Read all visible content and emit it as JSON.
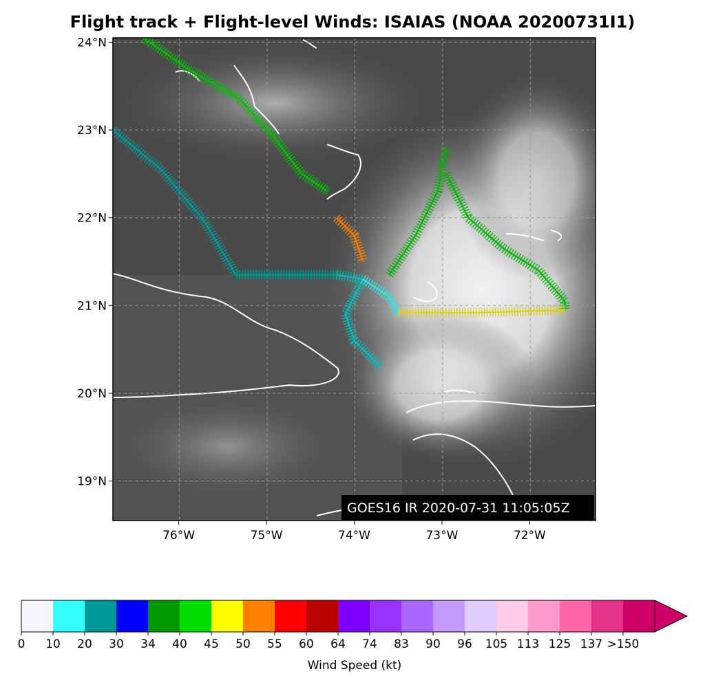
{
  "title": "Flight track + Flight-level Winds: ISAIAS (NOAA 20200731I1)",
  "map": {
    "lon_range": [
      -76.75,
      -71.25
    ],
    "lat_range": [
      18.55,
      24.05
    ],
    "grid": true,
    "lon_ticks": [
      {
        "value": -76,
        "label": "76°W"
      },
      {
        "value": -75,
        "label": "75°W"
      },
      {
        "value": -74,
        "label": "74°W"
      },
      {
        "value": -73,
        "label": "73°W"
      },
      {
        "value": -72,
        "label": "72°W"
      }
    ],
    "lat_ticks": [
      {
        "value": 24,
        "label": "24°N"
      },
      {
        "value": 23,
        "label": "23°N"
      },
      {
        "value": 22,
        "label": "22°N"
      },
      {
        "value": 21,
        "label": "21°N"
      },
      {
        "value": 20,
        "label": "20°N"
      },
      {
        "value": 19,
        "label": "19°N"
      }
    ],
    "stamp": "GOES16 IR 2020-07-31 11:05:05Z",
    "tracks": [
      {
        "color": "#00c000",
        "points": [
          [
            -76.4,
            24.05
          ],
          [
            -75.9,
            23.7
          ],
          [
            -75.3,
            23.35
          ],
          [
            -74.9,
            22.9
          ],
          [
            -74.6,
            22.5
          ],
          [
            -74.3,
            22.3
          ]
        ]
      },
      {
        "color": "#009999",
        "points": [
          [
            -76.75,
            23.0
          ],
          [
            -76.2,
            22.55
          ],
          [
            -75.7,
            21.95
          ],
          [
            -75.35,
            21.35
          ],
          [
            -74.2,
            21.35
          ]
        ]
      },
      {
        "color": "#ff8000",
        "points": [
          [
            -74.2,
            22.0
          ],
          [
            -74.0,
            21.8
          ],
          [
            -73.9,
            21.5
          ]
        ]
      },
      {
        "color": "#00c0c0",
        "points": [
          [
            -74.2,
            21.35
          ],
          [
            -73.9,
            21.3
          ],
          [
            -74.1,
            20.9
          ],
          [
            -74.0,
            20.6
          ],
          [
            -73.7,
            20.3
          ]
        ]
      },
      {
        "color": "#30e8e8",
        "points": [
          [
            -73.9,
            21.3
          ],
          [
            -73.6,
            21.1
          ],
          [
            -73.5,
            20.9
          ]
        ]
      },
      {
        "color": "#00b000",
        "points": [
          [
            -73.6,
            21.35
          ],
          [
            -73.3,
            21.8
          ],
          [
            -73.05,
            22.3
          ],
          [
            -72.95,
            22.8
          ]
        ]
      },
      {
        "color": "#00b000",
        "points": [
          [
            -72.95,
            22.5
          ],
          [
            -72.7,
            22.0
          ],
          [
            -72.3,
            21.65
          ],
          [
            -71.9,
            21.4
          ],
          [
            -71.6,
            21.05
          ],
          [
            -71.6,
            20.95
          ]
        ]
      },
      {
        "color": "#e0d000",
        "points": [
          [
            -71.6,
            20.95
          ],
          [
            -72.5,
            20.92
          ],
          [
            -73.5,
            20.92
          ]
        ]
      }
    ]
  },
  "colorbar": {
    "label": "Wind Speed (kt)",
    "ticks": [
      "0",
      "10",
      "20",
      "30",
      "34",
      "40",
      "45",
      "50",
      "55",
      "60",
      "64",
      "74",
      "83",
      "90",
      "96",
      "105",
      "113",
      "125",
      "137",
      ">150"
    ],
    "colors": [
      "#f4f6fc",
      "#33ffff",
      "#009999",
      "#0000ff",
      "#009900",
      "#00dd00",
      "#ffff00",
      "#ff8000",
      "#ff0000",
      "#bb0000",
      "#8000ff",
      "#9933ff",
      "#aa66ff",
      "#c699ff",
      "#e0ccff",
      "#ffcce8",
      "#ff99cc",
      "#ff66aa",
      "#e6338a",
      "#cc0066"
    ],
    "extend_color": "#cc0066"
  }
}
